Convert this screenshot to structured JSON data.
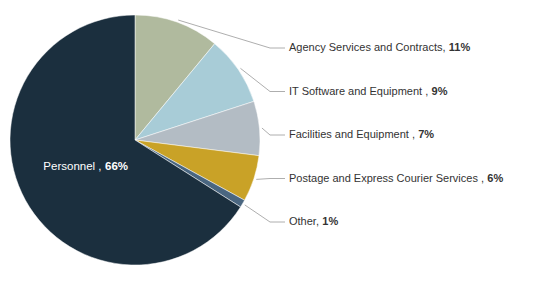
{
  "chart_data": {
    "type": "pie",
    "categories": [
      "Agency Services and Contracts,",
      "IT Software and Equipment ,",
      "Facilities and Equipment ,",
      "Postage and Express Courier Services ,",
      "Other,",
      "Personnel ,"
    ],
    "values": [
      11,
      9,
      7,
      6,
      1,
      66
    ],
    "value_labels": [
      "11%",
      "9%",
      "7%",
      "6%",
      "1%",
      "66%"
    ],
    "colors": [
      "#b0ba9e",
      "#a8ccd7",
      "#b3bcc4",
      "#c9a227",
      "#4a6680",
      "#1b2f3e"
    ],
    "data_labels": true
  }
}
